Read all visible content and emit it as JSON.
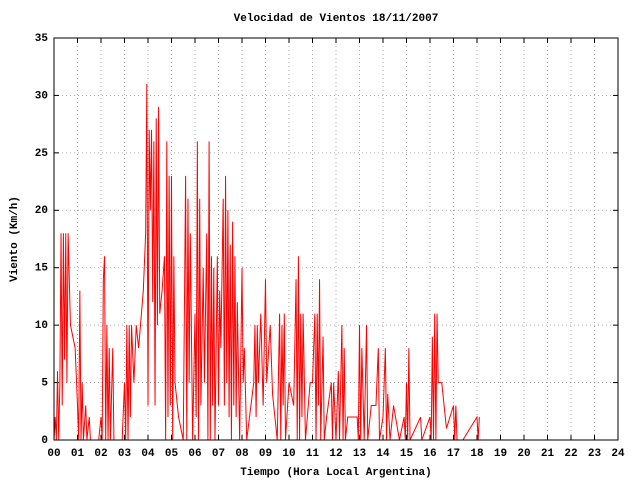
{
  "chart_data": {
    "type": "line",
    "title": "Velocidad de Vientos 18/11/2007",
    "xlabel": "Tiempo (Hora Local Argentina)",
    "ylabel": "Viento (Km/h)",
    "grid": true,
    "xlim": [
      0,
      24
    ],
    "ylim": [
      0,
      35
    ],
    "yticks": [
      0,
      5,
      10,
      15,
      20,
      25,
      30,
      35
    ],
    "xticks": [
      {
        "value": 0,
        "label": "00"
      },
      {
        "value": 1,
        "label": "01"
      },
      {
        "value": 2,
        "label": "02"
      },
      {
        "value": 3,
        "label": "03"
      },
      {
        "value": 4,
        "label": "04"
      },
      {
        "value": 5,
        "label": "05"
      },
      {
        "value": 6,
        "label": "06"
      },
      {
        "value": 7,
        "label": "07"
      },
      {
        "value": 8,
        "label": "08"
      },
      {
        "value": 9,
        "label": "09"
      },
      {
        "value": 10,
        "label": "10"
      },
      {
        "value": 11,
        "label": "11"
      },
      {
        "value": 12,
        "label": "12"
      },
      {
        "value": 13,
        "label": "13"
      },
      {
        "value": 14,
        "label": "14"
      },
      {
        "value": 15,
        "label": "15"
      },
      {
        "value": 16,
        "label": "16"
      },
      {
        "value": 17,
        "label": "17"
      },
      {
        "value": 18,
        "label": "18"
      },
      {
        "value": 19,
        "label": "19"
      },
      {
        "value": 20,
        "label": "20"
      },
      {
        "value": 21,
        "label": "21"
      },
      {
        "value": 22,
        "label": "22"
      },
      {
        "value": 23,
        "label": "23"
      },
      {
        "value": 24,
        "label": "24"
      }
    ],
    "color": "#ff0000",
    "x": [
      0.0,
      0.05,
      0.1,
      0.15,
      0.2,
      0.25,
      0.3,
      0.35,
      0.4,
      0.45,
      0.5,
      0.55,
      0.6,
      0.7,
      0.9,
      1.0,
      1.05,
      1.1,
      1.15,
      1.2,
      1.25,
      1.35,
      1.4,
      1.5,
      1.55,
      1.9,
      2.0,
      2.05,
      2.1,
      2.15,
      2.2,
      2.25,
      2.3,
      2.35,
      2.4,
      2.5,
      2.55,
      2.9,
      3.0,
      3.05,
      3.1,
      3.15,
      3.2,
      3.25,
      3.3,
      3.4,
      3.5,
      3.6,
      3.8,
      3.9,
      3.95,
      4.0,
      4.05,
      4.1,
      4.15,
      4.2,
      4.25,
      4.3,
      4.35,
      4.4,
      4.45,
      4.5,
      4.6,
      4.7,
      4.75,
      4.8,
      4.85,
      4.9,
      4.95,
      5.0,
      5.05,
      5.1,
      5.15,
      5.3,
      5.5,
      5.6,
      5.65,
      5.7,
      5.75,
      5.8,
      5.9,
      6.0,
      6.05,
      6.1,
      6.15,
      6.2,
      6.25,
      6.35,
      6.4,
      6.5,
      6.55,
      6.6,
      6.65,
      6.7,
      6.75,
      6.8,
      6.85,
      6.95,
      7.0,
      7.05,
      7.1,
      7.2,
      7.25,
      7.3,
      7.35,
      7.4,
      7.45,
      7.5,
      7.55,
      7.6,
      7.65,
      7.7,
      7.75,
      7.8,
      7.9,
      8.0,
      8.05,
      8.1,
      8.2,
      8.5,
      8.55,
      8.6,
      8.65,
      8.7,
      8.8,
      8.9,
      9.0,
      9.05,
      9.2,
      9.3,
      9.5,
      9.6,
      9.65,
      9.7,
      9.75,
      9.8,
      9.85,
      10.0,
      10.2,
      10.3,
      10.35,
      10.4,
      10.45,
      10.5,
      10.55,
      10.6,
      10.7,
      10.9,
      11.0,
      11.1,
      11.15,
      11.2,
      11.25,
      11.3,
      11.35,
      11.45,
      11.5,
      11.6,
      11.8,
      11.85,
      11.9,
      12.0,
      12.1,
      12.15,
      12.25,
      12.3,
      12.35,
      12.4,
      12.5,
      12.9,
      12.95,
      13.0,
      13.05,
      13.1,
      13.2,
      13.3,
      13.35,
      13.5,
      13.7,
      13.8,
      13.85,
      14.0,
      14.1,
      14.15,
      14.2,
      14.3,
      14.45,
      14.7,
      14.9,
      14.95,
      15.0,
      15.05,
      15.1,
      15.15,
      15.6,
      15.65,
      16.0,
      16.05,
      16.1,
      16.15,
      16.2,
      16.25,
      16.3,
      16.35,
      16.5,
      16.6,
      16.7,
      17.0,
      17.05,
      17.1,
      17.15,
      17.4,
      18.0,
      18.05,
      18.1
    ],
    "values": [
      0,
      2,
      0,
      6,
      0,
      5,
      18,
      3,
      18,
      7,
      18,
      5,
      18,
      10,
      8,
      3,
      0,
      13,
      0,
      5,
      0,
      3,
      0,
      2,
      0,
      0,
      2,
      0,
      14,
      16,
      0,
      10,
      0,
      8,
      0,
      8,
      0,
      0,
      5,
      0,
      10,
      0,
      10,
      2,
      10,
      5,
      10,
      8,
      13,
      18,
      31,
      3,
      27,
      20,
      27,
      12,
      26,
      3,
      28,
      10,
      29,
      11,
      13,
      16,
      0,
      26,
      2,
      23,
      3,
      23,
      0,
      16,
      5,
      2,
      0,
      23,
      0,
      21,
      5,
      18,
      0,
      11,
      2,
      26,
      0,
      21,
      3,
      15,
      5,
      18,
      0,
      26,
      0,
      16,
      3,
      15,
      0,
      16,
      3,
      13,
      8,
      21,
      3,
      23,
      5,
      20,
      2,
      17,
      0,
      19,
      3,
      16,
      2,
      12,
      0,
      15,
      5,
      8,
      0,
      5,
      10,
      2,
      10,
      5,
      11,
      3,
      14,
      5,
      10,
      4,
      0,
      11,
      0,
      10,
      3,
      11,
      0,
      5,
      3,
      14,
      0,
      16,
      0,
      11,
      2,
      11,
      0,
      5,
      5,
      11,
      0,
      11,
      3,
      14,
      0,
      9,
      0,
      2,
      5,
      0,
      5,
      0,
      6,
      0,
      10,
      0,
      8,
      0,
      2,
      2,
      0,
      10,
      0,
      8,
      0,
      10,
      0,
      3,
      3,
      8,
      0,
      2,
      8,
      0,
      4,
      0,
      3,
      0,
      2,
      0,
      5,
      0,
      8,
      0,
      2,
      0,
      2,
      0,
      9,
      0,
      11,
      0,
      11,
      5,
      5,
      3,
      1,
      3,
      0,
      3,
      0,
      0,
      2,
      0,
      2
    ]
  }
}
